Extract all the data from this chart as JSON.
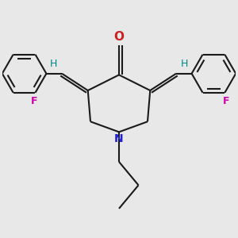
{
  "bg_color": "#e8e8e8",
  "bond_color": "#1a1a1a",
  "N_color": "#2020cc",
  "O_color": "#cc2020",
  "F_color": "#cc00aa",
  "H_color": "#008888",
  "lw": 1.5,
  "fig_size": [
    3.0,
    3.0
  ],
  "dpi": 100,
  "xlim": [
    -4.5,
    4.5
  ],
  "ylim": [
    -3.8,
    3.8
  ]
}
